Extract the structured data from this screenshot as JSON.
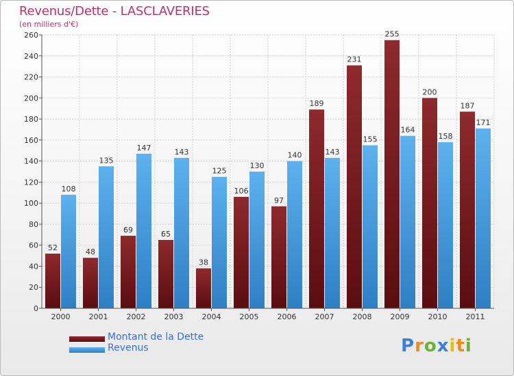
{
  "header": {
    "title": "Revenus/Dette - LASCLAVERIES",
    "subtitle": "(en milliers d'€)"
  },
  "colors": {
    "dette": "#7a1c1f",
    "revenus": "#4aa3e3",
    "title": "#b8336a",
    "legend_text": "#3a6fd8"
  },
  "chart_data": {
    "type": "bar",
    "title": "Revenus/Dette - LASCLAVERIES",
    "ylabel": "(en milliers d'€)",
    "categories": [
      "2000",
      "2001",
      "2002",
      "2003",
      "2004",
      "2005",
      "2006",
      "2007",
      "2008",
      "2009",
      "2010",
      "2011"
    ],
    "series": [
      {
        "name": "Montant de la Dette",
        "values": [
          52,
          48,
          69,
          65,
          38,
          106,
          97,
          189,
          231,
          255,
          200,
          187
        ]
      },
      {
        "name": "Revenus",
        "values": [
          108,
          135,
          147,
          143,
          125,
          130,
          140,
          143,
          155,
          164,
          158,
          171
        ]
      }
    ],
    "ylim": [
      0,
      260
    ],
    "yticks": [
      0,
      20,
      40,
      60,
      80,
      100,
      120,
      140,
      160,
      180,
      200,
      220,
      240,
      260
    ],
    "grid": true,
    "legend_position": "bottom-left"
  },
  "legend": {
    "items": [
      {
        "label": "Montant de la Dette"
      },
      {
        "label": "Revenus"
      }
    ]
  },
  "logo": {
    "letters": [
      "P",
      "r",
      "o",
      "x",
      "i",
      "t",
      "i"
    ],
    "colors": [
      "#3b7fd6",
      "#f08a1c",
      "#6ab233",
      "#3b7fd6",
      "#e0c010",
      "#f08a1c",
      "#6ab233"
    ]
  }
}
